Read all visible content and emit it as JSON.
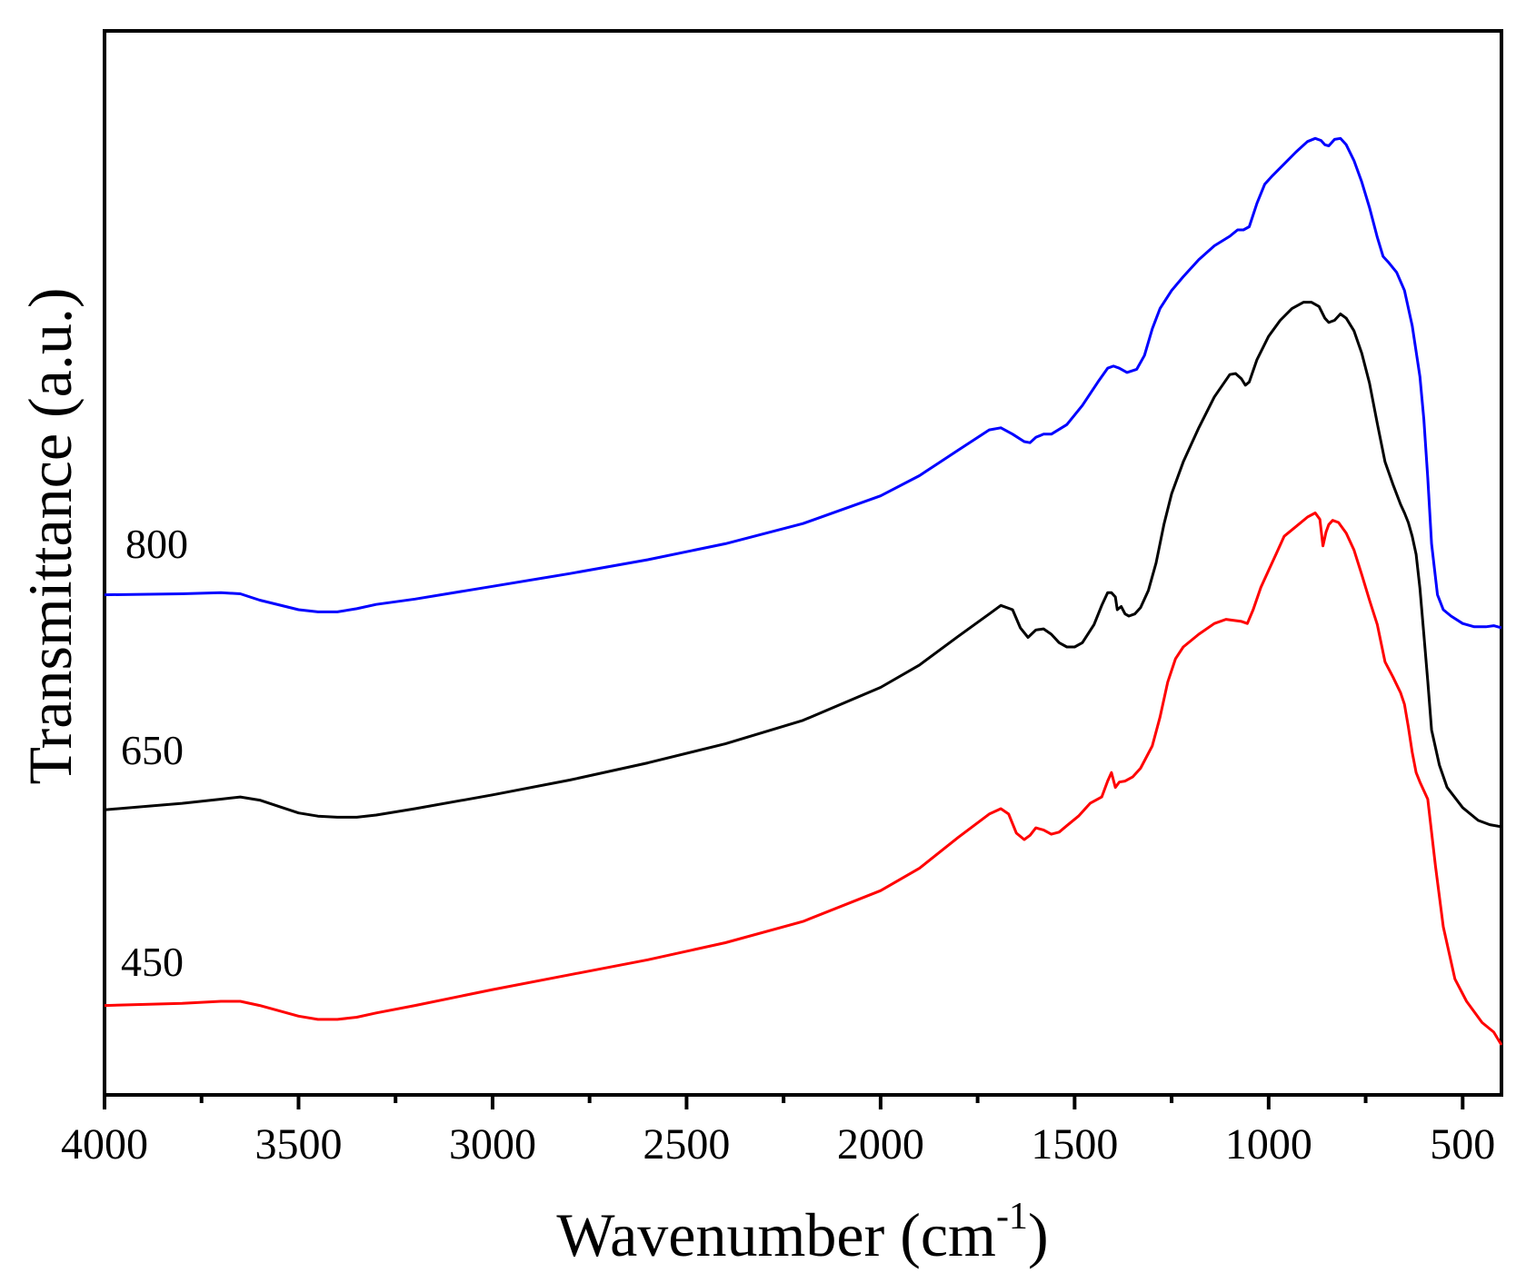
{
  "chart_data": {
    "type": "line",
    "title": "",
    "xlabel": "Wavenumber (cm",
    "xlabel_sup": "-1",
    "xlabel_close": ")",
    "ylabel": "Transmittance (a.u.)",
    "xlim": [
      4000,
      400
    ],
    "ylim": [
      0,
      100
    ],
    "x_reversed": true,
    "y_ticks_shown": false,
    "xticks": [
      4000,
      3500,
      3000,
      2500,
      2000,
      1500,
      1000,
      500
    ],
    "xtick_labels": [
      "4000",
      "3500",
      "3000",
      "2500",
      "2000",
      "1500",
      "1000",
      "500"
    ],
    "minor_xticks": [
      3750,
      3250,
      2750,
      2250,
      1750,
      1250,
      750
    ],
    "series": [
      {
        "name": "800",
        "label": "800",
        "color": "#0000ff",
        "x": [
          4000,
          3800,
          3700,
          3650,
          3600,
          3500,
          3450,
          3400,
          3350,
          3300,
          3200,
          3000,
          2800,
          2600,
          2400,
          2200,
          2000,
          1900,
          1800,
          1720,
          1690,
          1660,
          1630,
          1615,
          1600,
          1580,
          1560,
          1520,
          1480,
          1440,
          1415,
          1400,
          1385,
          1365,
          1340,
          1320,
          1300,
          1280,
          1250,
          1220,
          1180,
          1140,
          1100,
          1080,
          1065,
          1050,
          1030,
          1010,
          990,
          960,
          930,
          900,
          880,
          865,
          855,
          845,
          830,
          815,
          800,
          780,
          760,
          740,
          720,
          705,
          690,
          670,
          650,
          630,
          610,
          600,
          590,
          580,
          565,
          550,
          530,
          500,
          470,
          440,
          420,
          400
        ],
        "y": [
          47.0,
          47.1,
          47.2,
          47.1,
          46.5,
          45.6,
          45.4,
          45.4,
          45.7,
          46.1,
          46.6,
          47.8,
          49.0,
          50.3,
          51.8,
          53.7,
          56.3,
          58.2,
          60.6,
          62.5,
          62.7,
          62.1,
          61.4,
          61.3,
          61.8,
          62.1,
          62.1,
          63.0,
          64.8,
          67.0,
          68.3,
          68.5,
          68.3,
          67.9,
          68.2,
          69.5,
          72.0,
          73.9,
          75.6,
          76.9,
          78.5,
          79.8,
          80.7,
          81.3,
          81.3,
          81.6,
          83.8,
          85.6,
          86.4,
          87.5,
          88.6,
          89.6,
          89.9,
          89.7,
          89.3,
          89.2,
          89.8,
          89.9,
          89.3,
          87.8,
          85.8,
          83.4,
          80.6,
          78.8,
          78.2,
          77.3,
          75.6,
          72.3,
          67.5,
          63.5,
          58.0,
          51.8,
          47.0,
          45.6,
          45.0,
          44.3,
          44.0,
          44.0,
          44.1,
          43.9
        ]
      },
      {
        "name": "650",
        "label": "650",
        "color": "#000000",
        "x": [
          4000,
          3800,
          3700,
          3650,
          3600,
          3500,
          3450,
          3400,
          3350,
          3300,
          3200,
          3000,
          2800,
          2600,
          2400,
          2200,
          2000,
          1900,
          1800,
          1720,
          1690,
          1660,
          1640,
          1620,
          1600,
          1580,
          1560,
          1540,
          1520,
          1500,
          1480,
          1450,
          1430,
          1415,
          1405,
          1395,
          1390,
          1380,
          1370,
          1360,
          1345,
          1330,
          1310,
          1290,
          1270,
          1250,
          1220,
          1180,
          1140,
          1100,
          1085,
          1070,
          1060,
          1050,
          1030,
          1000,
          970,
          940,
          910,
          890,
          870,
          855,
          845,
          830,
          815,
          800,
          780,
          760,
          740,
          720,
          700,
          680,
          660,
          650,
          640,
          630,
          620,
          610,
          600,
          590,
          580,
          560,
          540,
          500,
          460,
          430,
          400
        ],
        "y": [
          26.8,
          27.4,
          27.8,
          28.0,
          27.7,
          26.5,
          26.2,
          26.1,
          26.1,
          26.3,
          26.9,
          28.2,
          29.6,
          31.2,
          33.0,
          35.2,
          38.3,
          40.4,
          43.1,
          45.2,
          46.0,
          45.6,
          43.9,
          43.0,
          43.7,
          43.8,
          43.3,
          42.5,
          42.1,
          42.1,
          42.5,
          44.2,
          46.0,
          47.2,
          47.2,
          46.8,
          45.6,
          45.9,
          45.2,
          45.0,
          45.2,
          45.8,
          47.4,
          50.0,
          53.6,
          56.5,
          59.5,
          62.7,
          65.6,
          67.7,
          67.8,
          67.3,
          66.7,
          67.0,
          69.1,
          71.3,
          72.8,
          73.9,
          74.5,
          74.5,
          74.1,
          73.0,
          72.6,
          72.8,
          73.4,
          73.0,
          71.8,
          69.7,
          66.9,
          63.1,
          59.5,
          57.4,
          55.5,
          54.7,
          53.8,
          52.5,
          50.8,
          47.6,
          43.3,
          38.9,
          34.3,
          31.0,
          28.9,
          27.0,
          25.8,
          25.4,
          25.2
        ]
      },
      {
        "name": "450",
        "label": "450",
        "color": "#ff0000",
        "x": [
          4000,
          3800,
          3700,
          3650,
          3600,
          3500,
          3450,
          3400,
          3350,
          3300,
          3200,
          3000,
          2800,
          2600,
          2400,
          2200,
          2000,
          1900,
          1800,
          1720,
          1690,
          1670,
          1650,
          1630,
          1615,
          1600,
          1580,
          1560,
          1540,
          1520,
          1490,
          1460,
          1430,
          1415,
          1405,
          1395,
          1385,
          1370,
          1350,
          1330,
          1300,
          1280,
          1260,
          1240,
          1220,
          1180,
          1140,
          1110,
          1090,
          1070,
          1055,
          1040,
          1020,
          1000,
          980,
          960,
          930,
          900,
          880,
          868,
          860,
          852,
          845,
          835,
          820,
          800,
          780,
          760,
          740,
          720,
          700,
          680,
          660,
          650,
          640,
          630,
          620,
          610,
          600,
          590,
          570,
          550,
          520,
          490,
          450,
          420,
          400
        ],
        "y": [
          8.4,
          8.6,
          8.8,
          8.8,
          8.4,
          7.4,
          7.1,
          7.1,
          7.3,
          7.7,
          8.4,
          9.9,
          11.3,
          12.7,
          14.3,
          16.3,
          19.2,
          21.3,
          24.2,
          26.4,
          26.9,
          26.4,
          24.6,
          24.0,
          24.4,
          25.1,
          24.9,
          24.5,
          24.7,
          25.3,
          26.2,
          27.4,
          28.0,
          29.5,
          30.3,
          28.9,
          29.4,
          29.5,
          29.9,
          30.7,
          32.8,
          35.5,
          38.8,
          41.0,
          42.1,
          43.3,
          44.3,
          44.7,
          44.6,
          44.5,
          44.3,
          45.6,
          47.7,
          49.3,
          50.9,
          52.5,
          53.4,
          54.3,
          54.7,
          54.1,
          51.6,
          52.9,
          53.6,
          54.0,
          53.8,
          52.8,
          51.2,
          48.9,
          46.5,
          44.2,
          40.7,
          39.3,
          37.8,
          36.7,
          34.6,
          32.2,
          30.3,
          29.4,
          28.6,
          27.8,
          21.5,
          15.8,
          10.9,
          8.8,
          6.8,
          5.9,
          4.7
        ]
      }
    ]
  }
}
